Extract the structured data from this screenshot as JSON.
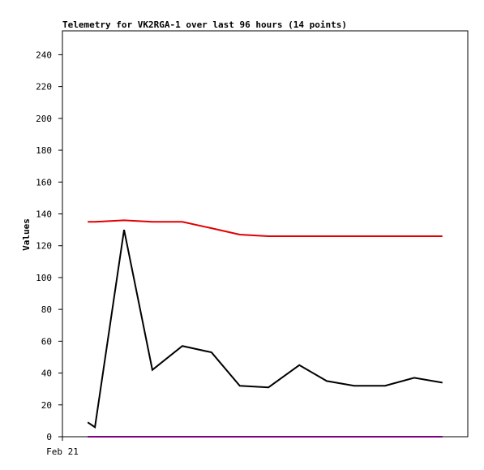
{
  "chart_data": {
    "type": "line",
    "title": "Telemetry for VK2RGA-1 over last 96 hours (14 points)",
    "y_label": "Values",
    "x": [
      6,
      7.7,
      14.6,
      21.3,
      28.4,
      35.3,
      42,
      48.8,
      56.1,
      62.6,
      69.1,
      76.4,
      83.3,
      90
    ],
    "xlim": [
      0,
      96
    ],
    "xticks": [
      {
        "value": 0,
        "label": "Feb 21"
      }
    ],
    "ylim": [
      0,
      255
    ],
    "yticks": [
      0,
      20,
      40,
      60,
      80,
      100,
      120,
      140,
      160,
      180,
      200,
      220,
      240
    ],
    "series": [
      {
        "color": "#e00000",
        "values": [
          135,
          135,
          136,
          135,
          135,
          131,
          127,
          126,
          126,
          126,
          126,
          126,
          126,
          126
        ]
      },
      {
        "color": "#000000",
        "values": [
          9,
          6,
          130,
          42,
          57,
          53,
          32,
          31,
          45,
          35,
          32,
          32,
          37,
          34
        ]
      },
      {
        "color": "#800080",
        "values": [
          0,
          0,
          0,
          0,
          0,
          0,
          0,
          0,
          0,
          0,
          0,
          0,
          0,
          0
        ]
      }
    ]
  }
}
